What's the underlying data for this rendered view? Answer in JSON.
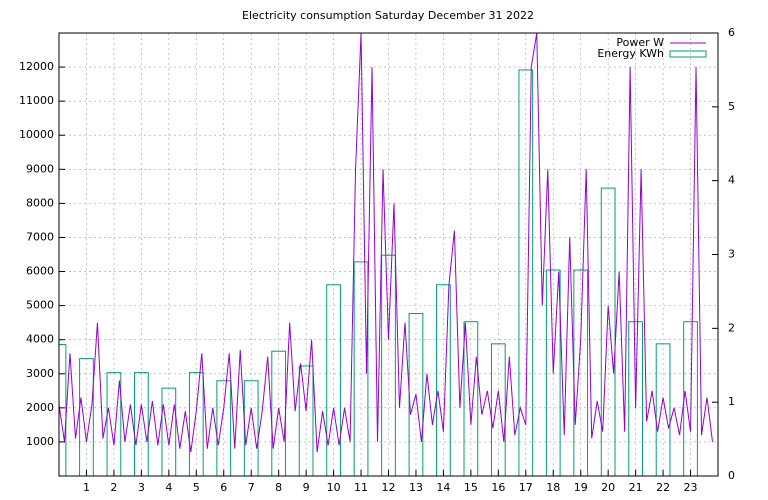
{
  "chart_data": {
    "type": "line",
    "title": "Electricity consumption Saturday December 31 2022",
    "xlim": [
      0,
      24
    ],
    "xticks": [
      1,
      2,
      3,
      4,
      5,
      6,
      7,
      8,
      9,
      10,
      11,
      12,
      13,
      14,
      15,
      16,
      17,
      18,
      19,
      20,
      21,
      22,
      23
    ],
    "ylim": [
      0,
      13000
    ],
    "yticks": [
      1000,
      2000,
      3000,
      4000,
      5000,
      6000,
      7000,
      8000,
      9000,
      10000,
      11000,
      12000
    ],
    "y2lim": [
      0,
      6
    ],
    "y2ticks": [
      0,
      1,
      2,
      3,
      4,
      5,
      6
    ],
    "grid": true,
    "legend": "top-right",
    "series": [
      {
        "name": "Power W",
        "color": "#9400d3",
        "x": [
          0,
          0.2,
          0.4,
          0.6,
          0.8,
          1,
          1.2,
          1.4,
          1.6,
          1.8,
          2,
          2.2,
          2.4,
          2.6,
          2.8,
          3,
          3.2,
          3.4,
          3.6,
          3.8,
          4,
          4.2,
          4.4,
          4.6,
          4.8,
          5,
          5.2,
          5.4,
          5.6,
          5.8,
          6,
          6.2,
          6.4,
          6.6,
          6.8,
          7,
          7.2,
          7.4,
          7.6,
          7.8,
          8,
          8.2,
          8.4,
          8.6,
          8.8,
          9,
          9.2,
          9.4,
          9.6,
          9.8,
          10,
          10.2,
          10.4,
          10.6,
          10.8,
          11,
          11.2,
          11.4,
          11.6,
          11.8,
          12,
          12.2,
          12.4,
          12.6,
          12.8,
          13,
          13.2,
          13.4,
          13.6,
          13.8,
          14,
          14.2,
          14.4,
          14.6,
          14.8,
          15,
          15.2,
          15.4,
          15.6,
          15.8,
          16,
          16.2,
          16.4,
          16.6,
          16.8,
          17,
          17.2,
          17.4,
          17.6,
          17.8,
          18,
          18.2,
          18.4,
          18.6,
          18.8,
          19,
          19.2,
          19.4,
          19.6,
          19.8,
          20,
          20.2,
          20.4,
          20.6,
          20.8,
          21,
          21.2,
          21.4,
          21.6,
          21.8,
          22,
          22.2,
          22.4,
          22.6,
          22.8,
          23,
          23.2,
          23.4,
          23.6,
          23.8
        ],
        "values": [
          2100,
          1000,
          3600,
          1100,
          2300,
          1000,
          2100,
          4500,
          1100,
          2000,
          900,
          2800,
          1000,
          2100,
          900,
          2100,
          1000,
          2200,
          900,
          2100,
          900,
          2100,
          800,
          1900,
          700,
          1900,
          3600,
          800,
          2000,
          900,
          2000,
          3600,
          800,
          3700,
          900,
          2000,
          800,
          1900,
          3500,
          800,
          2000,
          1000,
          4500,
          1900,
          3300,
          1900,
          4000,
          700,
          1900,
          900,
          2000,
          900,
          2000,
          1000,
          9000,
          13000,
          3000,
          12000,
          1000,
          9000,
          4000,
          8000,
          2000,
          4500,
          1800,
          2400,
          1000,
          3000,
          1500,
          2500,
          1300,
          5600,
          7200,
          2000,
          4500,
          1500,
          3500,
          1800,
          2500,
          1400,
          2500,
          1000,
          3500,
          1200,
          2000,
          1500,
          12000,
          13000,
          5000,
          9000,
          3000,
          6000,
          1200,
          7000,
          1500,
          4000,
          9000,
          1100,
          2200,
          1300,
          5000,
          3000,
          6000,
          1300,
          12000,
          2000,
          9000,
          1600,
          2500,
          1300,
          2300,
          1400,
          2000,
          1200,
          2500,
          1300,
          12000,
          1200,
          2300,
          1000
        ]
      },
      {
        "name": "Energy KWh",
        "color": "#009e73",
        "axis": "y2",
        "x": [
          0,
          1,
          2,
          3,
          4,
          5,
          6,
          7,
          8,
          9,
          10,
          11,
          12,
          13,
          14,
          15,
          16,
          17,
          18,
          19,
          20,
          21,
          22,
          23
        ],
        "values": [
          1.78,
          1.59,
          1.4,
          1.4,
          1.19,
          1.4,
          1.29,
          1.29,
          1.69,
          1.49,
          2.59,
          2.9,
          2.99,
          2.2,
          2.59,
          2.09,
          1.79,
          5.5,
          2.79,
          2.79,
          3.9,
          2.09,
          1.79,
          2.09
        ]
      }
    ]
  }
}
